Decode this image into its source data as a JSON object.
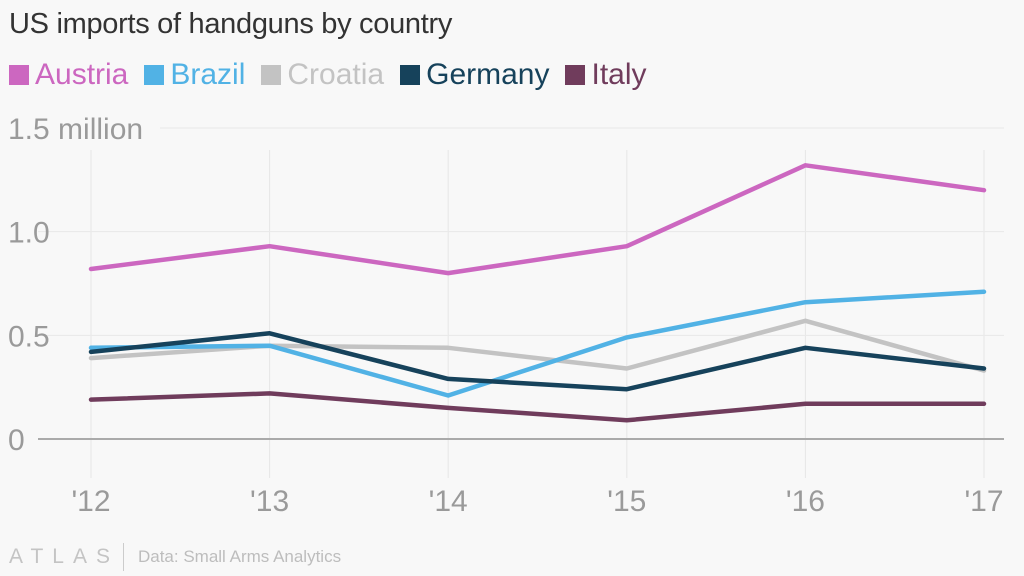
{
  "chart_data": {
    "type": "line",
    "title": "US imports of handguns by country",
    "xlabel": "",
    "ylabel": "",
    "categories": [
      "'12",
      "'13",
      "'14",
      "'15",
      "'16",
      "'17"
    ],
    "ylim": [
      0,
      1.5
    ],
    "yticks": [
      {
        "value": 0,
        "label": "0"
      },
      {
        "value": 0.5,
        "label": "0.5"
      },
      {
        "value": 1.0,
        "label": "1.0"
      },
      {
        "value": 1.5,
        "label": "1.5 million"
      }
    ],
    "grid": true,
    "legend_position": "top-left",
    "series": [
      {
        "name": "Austria",
        "color": "#cc67c0",
        "values": [
          0.82,
          0.93,
          0.8,
          0.93,
          1.32,
          1.2
        ]
      },
      {
        "name": "Brazil",
        "color": "#51b2e5",
        "values": [
          0.44,
          0.45,
          0.21,
          0.49,
          0.66,
          0.71
        ]
      },
      {
        "name": "Croatia",
        "color": "#c3c3c3",
        "values": [
          0.39,
          0.45,
          0.44,
          0.34,
          0.57,
          0.33
        ]
      },
      {
        "name": "Germany",
        "color": "#16425b",
        "values": [
          0.42,
          0.51,
          0.29,
          0.24,
          0.44,
          0.34
        ]
      },
      {
        "name": "Italy",
        "color": "#703c5c",
        "values": [
          0.19,
          0.22,
          0.15,
          0.09,
          0.17,
          0.17
        ]
      }
    ]
  },
  "footer": {
    "brand": "ATLAS",
    "source": "Data: Small Arms Analytics"
  }
}
